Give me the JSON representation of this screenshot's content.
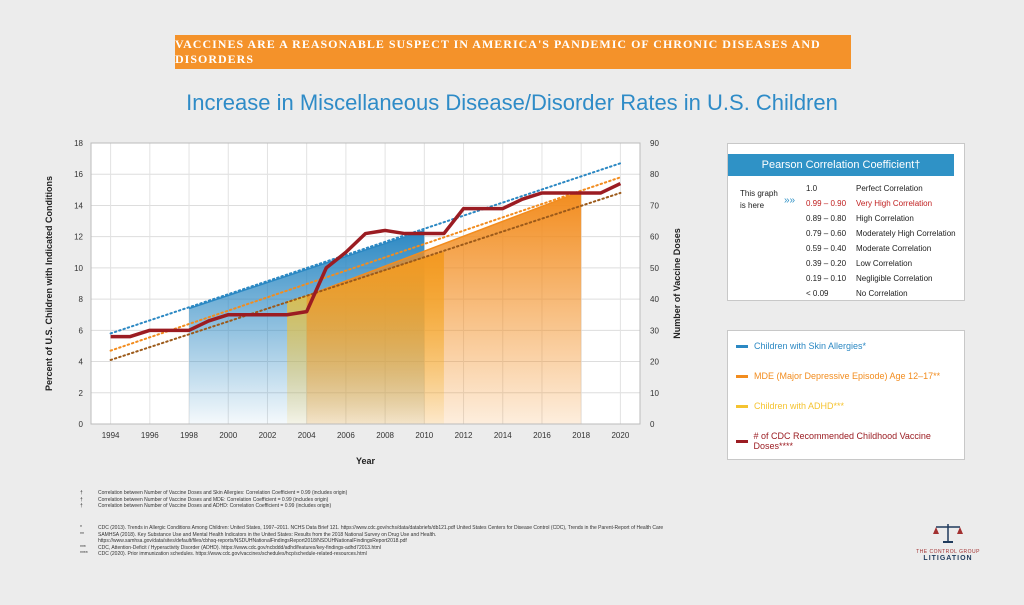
{
  "banner": "VACCINES ARE A REASONABLE SUSPECT IN AMERICA'S PANDEMIC OF CHRONIC DISEASES AND DISORDERS",
  "title": "Increase in Miscellaneous Disease/Disorder Rates in U.S. Children",
  "chart_data": {
    "type": "area",
    "xlabel": "Year",
    "ylabel": "Percent of U.S. Children with Indicated Conditions",
    "y2label": "Number of Vaccine Doses",
    "xlim": [
      1993,
      2021
    ],
    "ylim": [
      0,
      18
    ],
    "y2lim": [
      0,
      90
    ],
    "x_ticks": [
      "1994",
      "1996",
      "1998",
      "2000",
      "2002",
      "2004",
      "2006",
      "2008",
      "2010",
      "2012",
      "2014",
      "2016",
      "2018",
      "2020"
    ],
    "y_ticks": [
      "0",
      "2",
      "4",
      "6",
      "8",
      "10",
      "12",
      "14",
      "16",
      "18"
    ],
    "y2_ticks": [
      "0",
      "10",
      "20",
      "30",
      "40",
      "50",
      "60",
      "70",
      "80",
      "90"
    ],
    "grid": true,
    "series": [
      {
        "name": "Children with Skin Allergies*",
        "kind": "area",
        "color": "#2b88c3",
        "points": [
          [
            1998,
            7.4
          ],
          [
            2010,
            12.4
          ]
        ],
        "trend": [
          [
            1994,
            5.8
          ],
          [
            2020,
            16.7
          ]
        ]
      },
      {
        "name": "MDE (Major Depressive Episode) Age 12–17**",
        "kind": "area",
        "color": "#f28c1e",
        "points": [
          [
            2004,
            8.2
          ],
          [
            2018,
            14.9
          ]
        ],
        "trend": [
          [
            1994,
            4.7
          ],
          [
            2020,
            15.8
          ]
        ]
      },
      {
        "name": "Children with ADHD***",
        "kind": "area",
        "color": "#f5c330",
        "points": [
          [
            2003,
            7.8
          ],
          [
            2011,
            11.0
          ]
        ],
        "trend": [
          [
            1994,
            4.1
          ],
          [
            2020,
            14.8
          ]
        ]
      },
      {
        "name": "# of CDC Recommended Childhood Vaccine Doses****",
        "kind": "line",
        "axis": "right",
        "color": "#9b1c22",
        "points": [
          [
            1994,
            28
          ],
          [
            1995,
            28
          ],
          [
            1996,
            30
          ],
          [
            1997,
            30
          ],
          [
            1998,
            30
          ],
          [
            1999,
            33
          ],
          [
            2000,
            35
          ],
          [
            2001,
            35
          ],
          [
            2002,
            35
          ],
          [
            2003,
            35
          ],
          [
            2004,
            36
          ],
          [
            2005,
            50
          ],
          [
            2006,
            55
          ],
          [
            2007,
            61
          ],
          [
            2008,
            62
          ],
          [
            2009,
            61
          ],
          [
            2010,
            61
          ],
          [
            2011,
            61
          ],
          [
            2012,
            69
          ],
          [
            2013,
            69
          ],
          [
            2014,
            69
          ],
          [
            2015,
            72
          ],
          [
            2016,
            74
          ],
          [
            2017,
            74
          ],
          [
            2018,
            74
          ],
          [
            2019,
            74
          ],
          [
            2020,
            77
          ]
        ]
      }
    ]
  },
  "pearson": {
    "title": "Pearson Correlation Coefficient†",
    "marker_text": [
      "This graph",
      "is here"
    ],
    "marker_arrows": "»»",
    "rows": [
      {
        "range": "1.0",
        "label": "Perfect Correlation"
      },
      {
        "range": "0.99 – 0.90",
        "label": "Very High Correlation"
      },
      {
        "range": "0.89 – 0.80",
        "label": "High Correlation"
      },
      {
        "range": "0.79 – 0.60",
        "label": "Moderately High Correlation"
      },
      {
        "range": "0.59 – 0.40",
        "label": "Moderate Correlation"
      },
      {
        "range": "0.39 – 0.20",
        "label": "Low Correlation"
      },
      {
        "range": "0.19 – 0.10",
        "label": "Negligible Correlation"
      },
      {
        "range": "< 0.09",
        "label": "No Correlation"
      }
    ]
  },
  "legend": [
    {
      "label": "Children with Skin Allergies*",
      "color": "#2b88c3"
    },
    {
      "label": "MDE (Major Depressive Episode) Age 12–17**",
      "color": "#f28c1e"
    },
    {
      "label": "Children with ADHD***",
      "color": "#f5c330"
    },
    {
      "label": "# of CDC Recommended Childhood Vaccine Doses****",
      "color": "#9b1c22"
    }
  ],
  "notes": [
    {
      "mark": "†",
      "text": "Correlation between Number of Vaccine Doses and Skin Allergies: Correlation Coefficient = 0.99 (includes origin)"
    },
    {
      "mark": "†",
      "text": "Correlation between Number of Vaccine Doses and MDE: Correlation Coefficient = 0.99 (includes origin)"
    },
    {
      "mark": "†",
      "text": "Correlation between Number of Vaccine Doses and ADHD: Correlation Coefficient = 0.99 (includes origin)"
    }
  ],
  "sources": [
    {
      "mark": "*",
      "text": "CDC (2013). Trends in Allergic Conditions Among Children: United States, 1997–2011. NCHS Data Brief 121. https://www.cdc.gov/nchs/data/databriefs/db121.pdf United States Centers for Disease Control (CDC), Trends in the Parent-Report of Health Care"
    },
    {
      "mark": "**",
      "text": "SAMHSA (2018). Key Substance Use and Mental Health Indicators in the United States: Results from the 2018 National Survey on Drug Use and Health."
    },
    {
      "mark": "",
      "text": "https://www.samhsa.gov/data/sites/default/files/cbhsq-reports/NSDUHNationalFindingsReport2018/NSDUHNationalFindingsReport2018.pdf"
    },
    {
      "mark": "***",
      "text": "CDC, Attention-Deficit / Hyperactivity Disorder (ADHD). https://www.cdc.gov/ncbddd/adhd/features/key-findings-adhd72013.html"
    },
    {
      "mark": "****",
      "text": "CDC (2020). Prior immunization schedules. https://www.cdc.gov/vaccines/schedules/hcp/schedule-related-resources.html"
    }
  ],
  "logo": {
    "line1": "THE CONTROL GROUP",
    "line2": "LITIGATION"
  }
}
